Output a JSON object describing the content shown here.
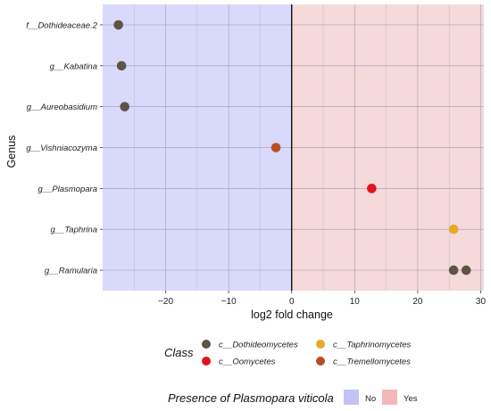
{
  "chart_data": {
    "type": "scatter",
    "orientation": "horizontal",
    "xlabel": "log2 fold change",
    "ylabel": "Genus",
    "xlim": [
      -30,
      30.5
    ],
    "xticks": [
      -20,
      -10,
      0,
      10,
      20,
      30
    ],
    "xtick_labels": [
      "−20",
      "−10",
      "0",
      "10",
      "20",
      "30"
    ],
    "grid": true,
    "categories": [
      "f__Dothideaceae.2",
      "g__Kabatina",
      "g__Aureobasidium",
      "g__Vishniacozyma",
      "g__Plasmopara",
      "g__Taphrina",
      "g__Ramularia"
    ],
    "points": [
      {
        "genus": "f__Dothideaceae.2",
        "x": -27.5,
        "class": "c__Dothideomycetes"
      },
      {
        "genus": "g__Kabatina",
        "x": -27.0,
        "class": "c__Dothideomycetes"
      },
      {
        "genus": "g__Aureobasidium",
        "x": -26.5,
        "class": "c__Dothideomycetes"
      },
      {
        "genus": "g__Vishniacozyma",
        "x": -2.5,
        "class": "c__Tremellomycetes"
      },
      {
        "genus": "g__Plasmopara",
        "x": 12.7,
        "class": "c__Oomycetes"
      },
      {
        "genus": "g__Taphrina",
        "x": 25.7,
        "class": "c__Taphrinomycetes"
      },
      {
        "genus": "g__Ramularia",
        "x": 25.7,
        "class": "c__Dothideomycetes"
      },
      {
        "genus": "g__Ramularia",
        "x": 27.7,
        "class": "c__Dothideomycetes"
      }
    ],
    "regions": [
      {
        "label": "No",
        "from": -30,
        "to": 0,
        "color": "#d9d9fb"
      },
      {
        "label": "Yes",
        "from": 0,
        "to": 30.5,
        "color": "#f6d9da"
      }
    ],
    "class_legend": {
      "title": "Class",
      "entries": [
        {
          "label": "c__Dothideomycetes",
          "color": "#5d5346"
        },
        {
          "label": "c__Taphrinomycetes",
          "color": "#e6a92b"
        },
        {
          "label": "c__Oomycetes",
          "color": "#e0141c"
        },
        {
          "label": "c__Tremellomycetes",
          "color": "#b84e25"
        }
      ]
    },
    "presence_legend": {
      "title": "Presence of Plasmopara viticola",
      "entries": [
        {
          "label": "No",
          "color": "#c4c2f4"
        },
        {
          "label": "Yes",
          "color": "#f4b7b9"
        }
      ]
    }
  }
}
